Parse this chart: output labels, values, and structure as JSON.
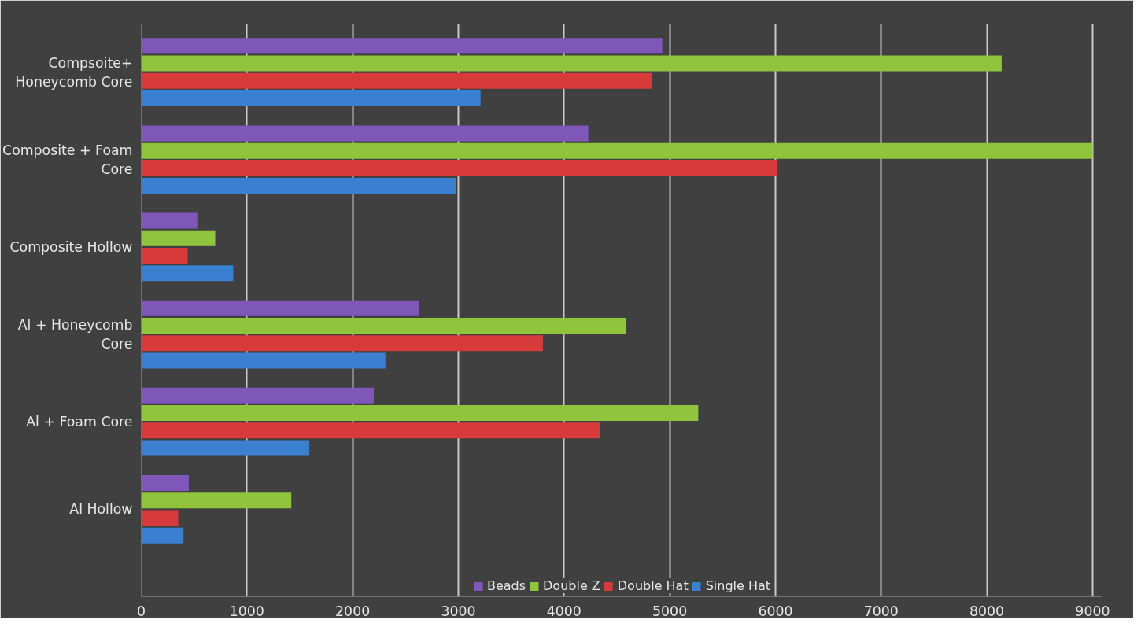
{
  "chart_data": {
    "type": "bar",
    "orientation": "horizontal",
    "categories": [
      "Compsoite+ Honeycomb Core",
      "Composite + Foam Core",
      "Composite Hollow",
      "Al + Honeycomb Core",
      "Al + Foam Core",
      "Al Hollow"
    ],
    "series": [
      {
        "name": "Beads",
        "color": "#7e57b8",
        "values": [
          4930,
          4230,
          530,
          2630,
          2200,
          450
        ]
      },
      {
        "name": "Double Z",
        "color": "#8fc43c",
        "values": [
          8140,
          9000,
          700,
          4590,
          5270,
          1420
        ]
      },
      {
        "name": "Double Hat",
        "color": "#d63a3a",
        "values": [
          4830,
          6020,
          440,
          3800,
          4340,
          350
        ]
      },
      {
        "name": "Single Hat",
        "color": "#3a7fd0",
        "values": [
          3210,
          2980,
          870,
          2310,
          1590,
          400
        ]
      }
    ],
    "xlim": [
      0,
      9000
    ],
    "xticks": [
      0,
      1000,
      2000,
      3000,
      4000,
      5000,
      6000,
      7000,
      8000,
      9000
    ],
    "grid": "x",
    "legend": "bottom"
  }
}
